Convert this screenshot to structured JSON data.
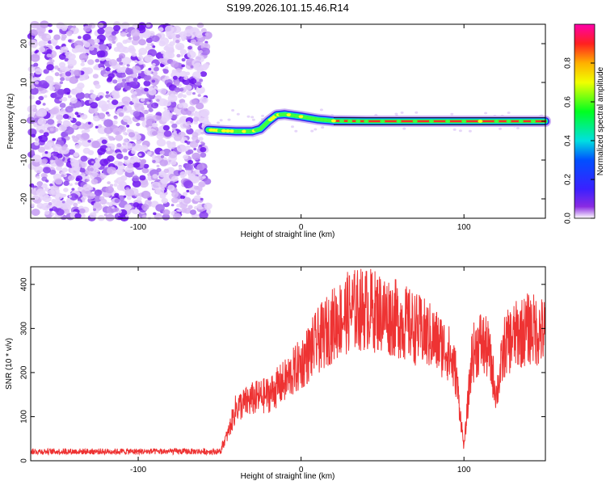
{
  "title": "S199.2026.101.15.46.R14",
  "chart_data": [
    {
      "type": "heatmap",
      "xlabel": "Height of straight line (km)",
      "ylabel": "Frequency (Hz)",
      "xlim": [
        -166,
        150
      ],
      "ylim": [
        -25,
        25
      ],
      "xticks": [
        -100,
        0,
        100
      ],
      "yticks": [
        -20,
        -10,
        0,
        10,
        20
      ],
      "noise_region_x": [
        -166,
        -57
      ],
      "signal_trace": [
        {
          "x": -57,
          "y": -2.2
        },
        {
          "x": -50,
          "y": -2.4
        },
        {
          "x": -40,
          "y": -2.6
        },
        {
          "x": -30,
          "y": -2.6
        },
        {
          "x": -25,
          "y": -2.0
        },
        {
          "x": -20,
          "y": 0.0
        },
        {
          "x": -15,
          "y": 1.6
        },
        {
          "x": -10,
          "y": 1.8
        },
        {
          "x": 0,
          "y": 1.2
        },
        {
          "x": 10,
          "y": 0.5
        },
        {
          "x": 20,
          "y": 0.1
        },
        {
          "x": 40,
          "y": 0.0
        },
        {
          "x": 80,
          "y": 0.0
        },
        {
          "x": 120,
          "y": 0.0
        },
        {
          "x": 150,
          "y": 0.0
        }
      ],
      "colorbar": {
        "label": "Normalized spectral amplitude",
        "range": [
          0,
          1
        ],
        "ticks": [
          0.0,
          0.2,
          0.4,
          0.6,
          0.8
        ]
      }
    },
    {
      "type": "line",
      "xlabel": "Height of straight line (km)",
      "ylabel": "SNR (10 * v/v)",
      "xlim": [
        -166,
        150
      ],
      "ylim": [
        0,
        440
      ],
      "xticks": [
        -100,
        0,
        100
      ],
      "yticks": [
        0,
        100,
        200,
        300,
        400
      ],
      "color": "#ee3333",
      "envelope": [
        {
          "x": -166,
          "y": 20
        },
        {
          "x": -120,
          "y": 20
        },
        {
          "x": -80,
          "y": 20
        },
        {
          "x": -50,
          "y": 22
        },
        {
          "x": -45,
          "y": 60
        },
        {
          "x": -40,
          "y": 120
        },
        {
          "x": -30,
          "y": 140
        },
        {
          "x": -20,
          "y": 150
        },
        {
          "x": -10,
          "y": 180
        },
        {
          "x": 0,
          "y": 220
        },
        {
          "x": 10,
          "y": 270
        },
        {
          "x": 20,
          "y": 310
        },
        {
          "x": 30,
          "y": 340
        },
        {
          "x": 40,
          "y": 345
        },
        {
          "x": 50,
          "y": 335
        },
        {
          "x": 60,
          "y": 320
        },
        {
          "x": 70,
          "y": 300
        },
        {
          "x": 80,
          "y": 280
        },
        {
          "x": 90,
          "y": 250
        },
        {
          "x": 95,
          "y": 200
        },
        {
          "x": 100,
          "y": 30
        },
        {
          "x": 105,
          "y": 240
        },
        {
          "x": 110,
          "y": 270
        },
        {
          "x": 115,
          "y": 250
        },
        {
          "x": 120,
          "y": 150
        },
        {
          "x": 125,
          "y": 260
        },
        {
          "x": 130,
          "y": 280
        },
        {
          "x": 140,
          "y": 300
        },
        {
          "x": 150,
          "y": 290
        }
      ]
    }
  ]
}
